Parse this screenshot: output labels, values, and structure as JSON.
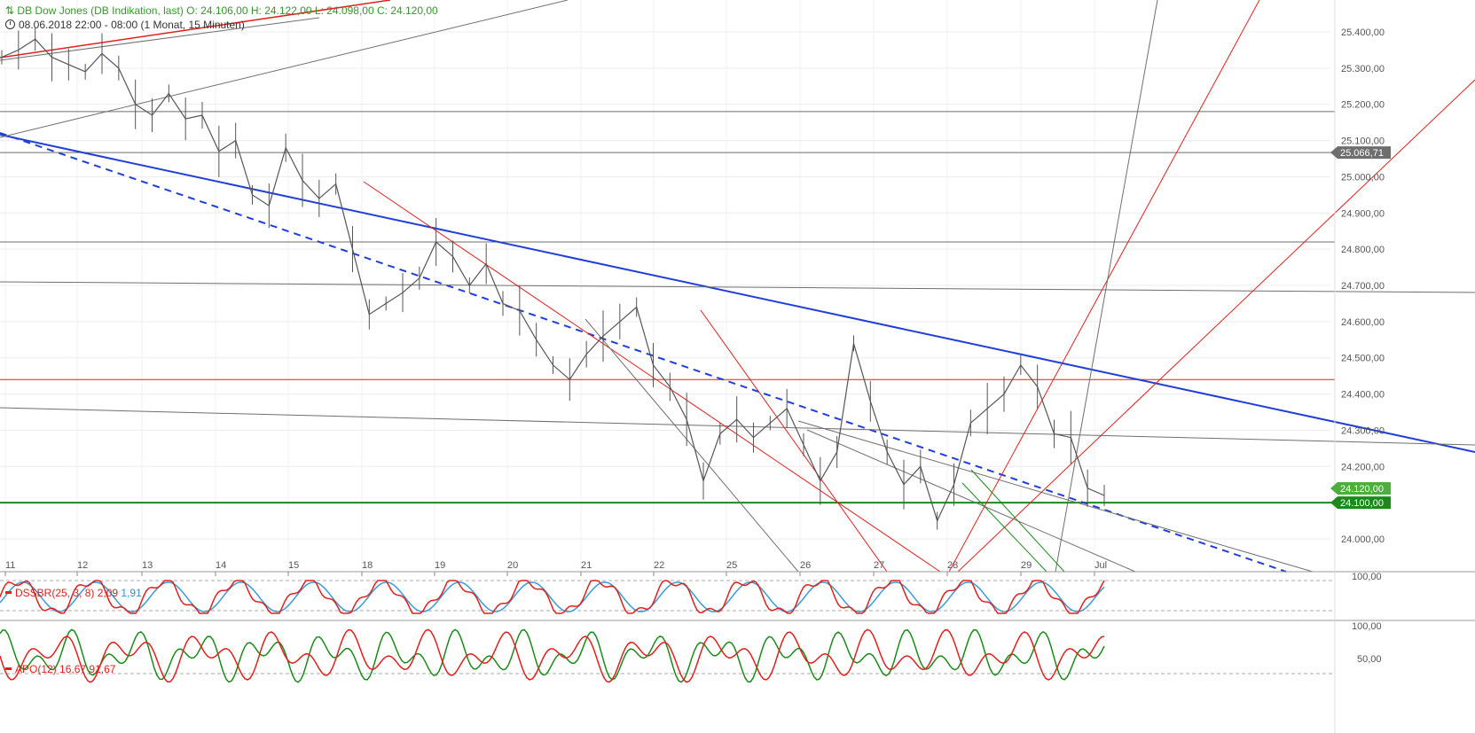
{
  "header": {
    "title_line": "DB Dow Jones (DB Indikation, last)  O: 24.106,00  H: 24.122,00  L: 24.098,00  C: 24.120,00",
    "period_line": "08.06.2018 22:00 - 08:00   (1 Monat, 15 Minuten)"
  },
  "indicators": {
    "dssbr": {
      "label": "DSSBR(25, 3, 8)",
      "value1": "2,09",
      "value2": "1,91"
    },
    "apo": {
      "label": "APO(12)",
      "value1": "16,67",
      "value2": "91,67"
    }
  },
  "colors": {
    "price": "#555555",
    "blue_trend": "#1f3fd6",
    "red_line": "#e0201c",
    "gray_line": "#6e6e6e",
    "green_line": "#1a8a1a",
    "dssbr_red": "#e0201c",
    "dssbr_blue": "#3a9ad9",
    "apo_green": "#1a8a1a",
    "apo_red": "#e0201c"
  },
  "chart_data": {
    "type": "line",
    "instrument": "DB Dow Jones",
    "x_labels": [
      "11",
      "12",
      "13",
      "14",
      "15",
      "18",
      "19",
      "20",
      "21",
      "22",
      "25",
      "26",
      "27",
      "28",
      "29",
      "Jul"
    ],
    "y_ticks": [
      "25.400,00",
      "25.300,00",
      "25.200,00",
      "25.100,00",
      "25.000,00",
      "24.900,00",
      "24.800,00",
      "24.700,00",
      "24.600,00",
      "24.500,00",
      "24.400,00",
      "24.300,00",
      "24.200,00",
      "24.100,00",
      "24.000,00"
    ],
    "ylim": [
      23950,
      25450
    ],
    "price_tags": [
      {
        "value": 25066.71,
        "label": "25.066,71",
        "color": "#6e6e6e"
      },
      {
        "value": 24120,
        "label": "24.120,00",
        "color": "#4caf3a"
      },
      {
        "value": 24100,
        "label": "24.100,00",
        "color": "#1a8a1a"
      }
    ],
    "series": [
      {
        "points": [
          [
            0,
            25330
          ],
          [
            1,
            25350
          ],
          [
            2,
            25380
          ],
          [
            3,
            25330
          ],
          [
            4,
            25310
          ],
          [
            5,
            25290
          ],
          [
            6,
            25340
          ],
          [
            7,
            25300
          ],
          [
            8,
            25200
          ],
          [
            9,
            25170
          ],
          [
            10,
            25230
          ],
          [
            11,
            25160
          ],
          [
            12,
            25170
          ],
          [
            13,
            25070
          ],
          [
            14,
            25100
          ],
          [
            15,
            24950
          ],
          [
            16,
            24920
          ],
          [
            17,
            25080
          ],
          [
            18,
            24990
          ],
          [
            19,
            24940
          ],
          [
            20,
            24980
          ],
          [
            21,
            24800
          ],
          [
            22,
            24620
          ],
          [
            23,
            24650
          ],
          [
            24,
            24680
          ],
          [
            25,
            24720
          ],
          [
            26,
            24820
          ],
          [
            27,
            24780
          ],
          [
            28,
            24700
          ],
          [
            29,
            24760
          ],
          [
            30,
            24650
          ],
          [
            31,
            24630
          ],
          [
            32,
            24550
          ],
          [
            33,
            24480
          ],
          [
            34,
            24440
          ],
          [
            35,
            24510
          ],
          [
            36,
            24560
          ],
          [
            37,
            24600
          ],
          [
            38,
            24640
          ],
          [
            39,
            24480
          ],
          [
            40,
            24420
          ],
          [
            41,
            24330
          ],
          [
            42,
            24160
          ],
          [
            43,
            24290
          ],
          [
            44,
            24330
          ],
          [
            45,
            24280
          ],
          [
            46,
            24320
          ],
          [
            47,
            24360
          ],
          [
            48,
            24260
          ],
          [
            49,
            24160
          ],
          [
            50,
            24240
          ],
          [
            51,
            24540
          ],
          [
            52,
            24380
          ],
          [
            53,
            24240
          ],
          [
            54,
            24150
          ],
          [
            55,
            24200
          ],
          [
            56,
            24050
          ],
          [
            57,
            24150
          ],
          [
            58,
            24320
          ],
          [
            59,
            24360
          ],
          [
            60,
            24400
          ],
          [
            61,
            24480
          ],
          [
            62,
            24420
          ],
          [
            63,
            24290
          ],
          [
            64,
            24280
          ],
          [
            65,
            24140
          ],
          [
            66,
            24120
          ]
        ],
        "x_scale": "index",
        "points_per_label": 4.2
      }
    ],
    "horizontal_levels": [
      {
        "value": 25180,
        "color": "#6e6e6e"
      },
      {
        "value": 25066.71,
        "color": "#6e6e6e"
      },
      {
        "value": 24820,
        "color": "#6e6e6e"
      },
      {
        "value": 24440,
        "color": "#e0201c"
      },
      {
        "value": 24100,
        "color": "#1a8a1a"
      }
    ],
    "indicator_scales": {
      "dssbr": [
        "100,00"
      ],
      "apo": [
        "100,00",
        "50,00"
      ]
    }
  }
}
